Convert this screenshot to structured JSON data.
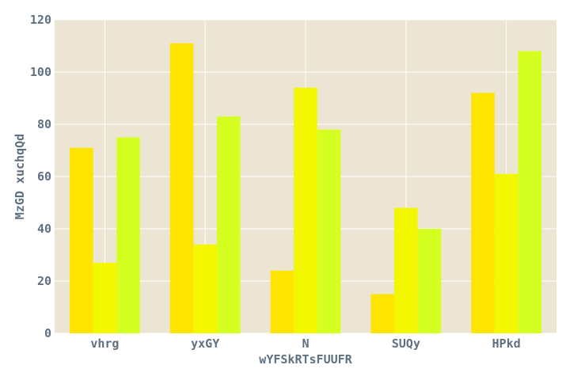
{
  "chart_data": {
    "type": "bar",
    "title": "",
    "xlabel": "wYFSkRTsFUUFR",
    "ylabel": "MzGD xuchqQd",
    "categories": [
      "vhrg",
      "yxGY",
      "N",
      "SUQy",
      "HPkd"
    ],
    "series": [
      {
        "color": "#ffe400",
        "values": [
          71,
          111,
          24,
          15,
          92
        ]
      },
      {
        "color": "#f3f700",
        "values": [
          27,
          34,
          94,
          48,
          61
        ]
      },
      {
        "color": "#d4ff20",
        "values": [
          75,
          83,
          78,
          40,
          108
        ]
      }
    ],
    "ylim": [
      0,
      120
    ],
    "yticks": [
      0,
      20,
      40,
      60,
      80,
      100,
      120
    ],
    "grid": true,
    "legend": "none",
    "colors": {
      "plot_background": "#ede5d4",
      "grid": "#ffffff",
      "text": "#5f7080"
    }
  }
}
